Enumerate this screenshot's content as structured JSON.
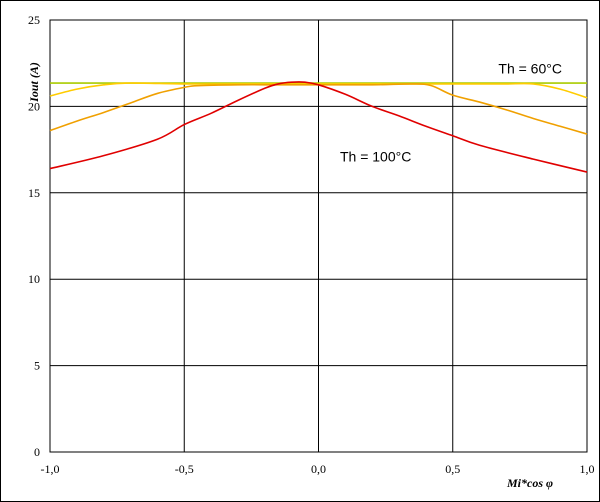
{
  "chart_data": {
    "type": "line",
    "xlabel": "Mi*cos φ",
    "ylabel": "Iout (A)",
    "xlim": [
      -1.0,
      1.0
    ],
    "ylim": [
      0,
      25
    ],
    "x_ticks": [
      -1.0,
      -0.5,
      0.0,
      0.5,
      1.0
    ],
    "x_tick_labels": [
      "-1,0",
      "-0,5",
      "0,0",
      "0,5",
      "1,0"
    ],
    "y_ticks": [
      0,
      5,
      10,
      15,
      20,
      25
    ],
    "y_tick_labels": [
      "0",
      "5",
      "10",
      "15",
      "20",
      "25"
    ],
    "grid": true,
    "annotations": [
      {
        "text": "Th = 60°C",
        "x": 0.67,
        "y": 21.9
      },
      {
        "text": "Th = 100°C",
        "x": 0.08,
        "y": 16.8
      }
    ],
    "series": [
      {
        "color": "#aacc00",
        "x": [
          -1.0,
          1.0
        ],
        "y": [
          21.35,
          21.35
        ]
      },
      {
        "color": "#ffcc00",
        "x": [
          -1.0,
          -0.9,
          -0.8,
          -0.7,
          -0.5,
          -0.3,
          0.0,
          0.3,
          0.6,
          0.7,
          0.8,
          0.9,
          1.0
        ],
        "y": [
          20.6,
          21.0,
          21.25,
          21.35,
          21.3,
          21.3,
          21.3,
          21.3,
          21.3,
          21.3,
          21.3,
          21.0,
          20.5
        ]
      },
      {
        "color": "#f0a000",
        "x": [
          -1.0,
          -0.9,
          -0.8,
          -0.7,
          -0.6,
          -0.5,
          -0.45,
          -0.3,
          -0.15,
          0.0,
          0.2,
          0.35,
          0.42,
          0.5,
          0.6,
          0.7,
          0.8,
          0.9,
          1.0
        ],
        "y": [
          18.6,
          19.15,
          19.65,
          20.2,
          20.75,
          21.1,
          21.2,
          21.25,
          21.25,
          21.25,
          21.25,
          21.3,
          21.2,
          20.65,
          20.25,
          19.8,
          19.3,
          18.85,
          18.4
        ]
      },
      {
        "color": "#e00000",
        "x": [
          -1.0,
          -0.8,
          -0.6,
          -0.5,
          -0.4,
          -0.3,
          -0.2,
          -0.15,
          -0.1,
          -0.05,
          0.0,
          0.1,
          0.2,
          0.3,
          0.4,
          0.5,
          0.6,
          0.8,
          1.0
        ],
        "y": [
          16.4,
          17.15,
          18.1,
          18.95,
          19.6,
          20.35,
          21.05,
          21.3,
          21.4,
          21.4,
          21.25,
          20.7,
          20.0,
          19.45,
          18.85,
          18.3,
          17.75,
          16.95,
          16.2
        ]
      }
    ]
  }
}
